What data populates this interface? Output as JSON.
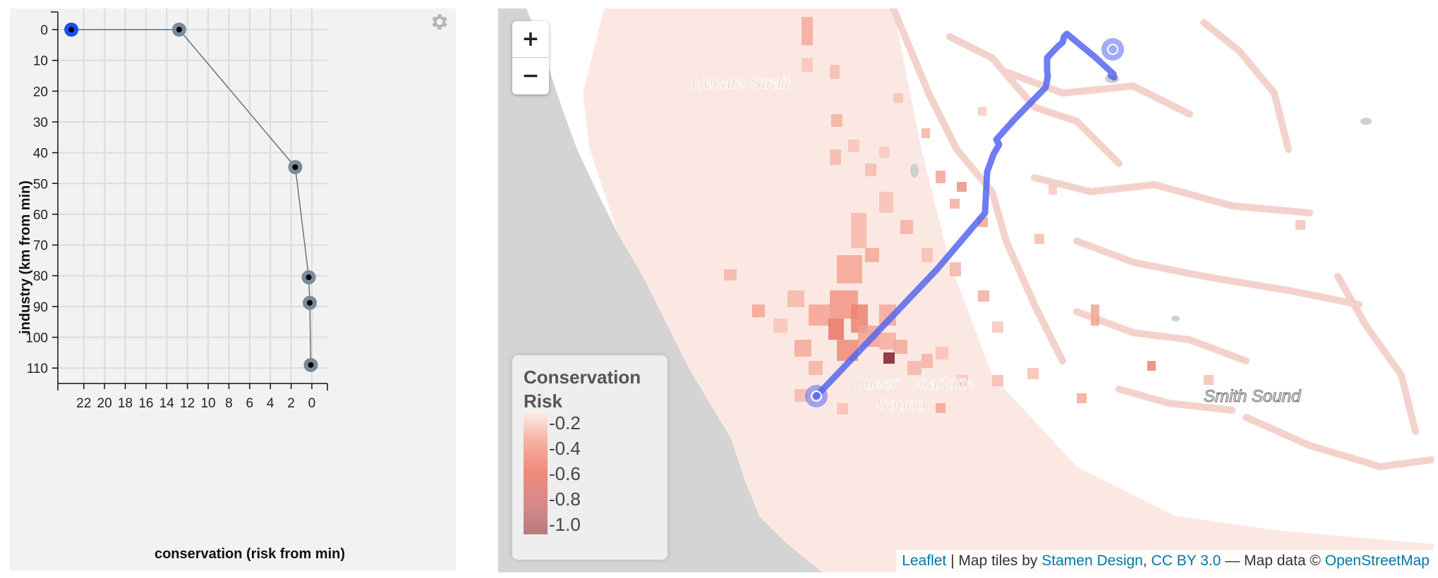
{
  "chart_data": {
    "type": "scatter",
    "xlabel": "conservation (risk from min)",
    "ylabel": "industry (km from min)",
    "x_reversed": true,
    "y_reversed": true,
    "xlim": [
      24.5,
      -1.5
    ],
    "ylim": [
      0,
      115
    ],
    "x_ticks": [
      22,
      20,
      18,
      16,
      14,
      12,
      10,
      8,
      6,
      4,
      2,
      0
    ],
    "y_ticks": [
      0,
      10,
      20,
      30,
      40,
      50,
      60,
      70,
      80,
      90,
      100,
      110
    ],
    "points": [
      {
        "x": 23.2,
        "y": 0,
        "selected": true
      },
      {
        "x": 12.8,
        "y": 0,
        "selected": false
      },
      {
        "x": 1.6,
        "y": 44.7,
        "selected": false
      },
      {
        "x": 0.3,
        "y": 80.5,
        "selected": false
      },
      {
        "x": 0.2,
        "y": 88.8,
        "selected": false
      },
      {
        "x": 0.1,
        "y": 109,
        "selected": false
      }
    ],
    "line_color": "#5f7584",
    "point_color": "#7a8a98",
    "selected_color": "#1a4ff0"
  },
  "settings": {
    "icon": "gear-icon"
  },
  "map": {
    "zoom_in_label": "+",
    "zoom_out_label": "−",
    "place_labels": {
      "hecate": "Hecate Strait",
      "queen1": "Queen Charlotte",
      "queen2": "Sound",
      "smith": "Smith Sound"
    },
    "legend": {
      "title": "Conservation Risk",
      "labels": [
        "-0.2",
        "-0.4",
        "-0.6",
        "-0.8",
        "-1.0"
      ]
    },
    "attribution": {
      "leaflet": "Leaflet",
      "sep1": " | Map tiles by ",
      "stamen": "Stamen Design",
      "comma": ", ",
      "cc": "CC BY 3.0",
      "sep2": " — Map data © ",
      "osm": "OpenStreetMap"
    },
    "route_color": "#5566ee"
  }
}
